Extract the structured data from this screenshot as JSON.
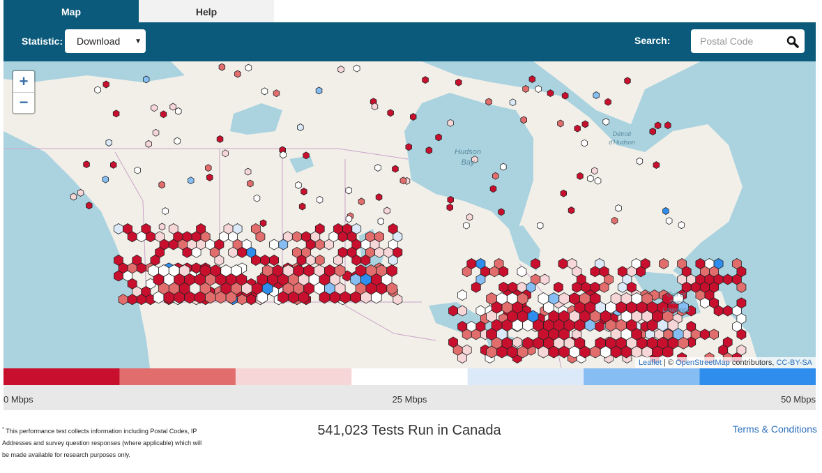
{
  "tabs": [
    "Map",
    "Help"
  ],
  "toolbar": {
    "statistic_label": "Statistic:",
    "statistic_value": "Download",
    "search_label": "Search:",
    "search_placeholder": "Postal Code"
  },
  "zoom": {
    "in": "+",
    "out": "−"
  },
  "map_labels": {
    "hudson_bay": [
      "Hudson",
      "Bay"
    ],
    "hudson_strait": [
      "Détroit",
      "d'Hudson"
    ],
    "gulf": [
      "Gulf of",
      "Saint",
      "Lawrence"
    ]
  },
  "attribution": {
    "leaflet": "Leaflet",
    "sep": "| ©",
    "osm": "OpenStreetMap",
    "contributors": "contributors,",
    "license": "CC-BY-SA"
  },
  "legend": {
    "colors": [
      "#c8102e",
      "#e26d6d",
      "#f7d6d8",
      "#ffffff",
      "#dce9f8",
      "#86bdf2",
      "#2f8ded"
    ],
    "range": [
      0,
      50
    ],
    "ticks": [
      {
        "value": 0,
        "label": "0 Mbps"
      },
      {
        "value": 25,
        "label": "25 Mbps"
      },
      {
        "value": 50,
        "label": "50 Mbps"
      }
    ]
  },
  "footer": {
    "footnote_mark": "*",
    "footnote": "This performance test collects information including Postal Codes, IP Addresses and survey question responses (where applicable) which will be made available for research purposes only.",
    "count": "541,023 Tests Run in Canada",
    "terms": "Terms & Conditions"
  }
}
